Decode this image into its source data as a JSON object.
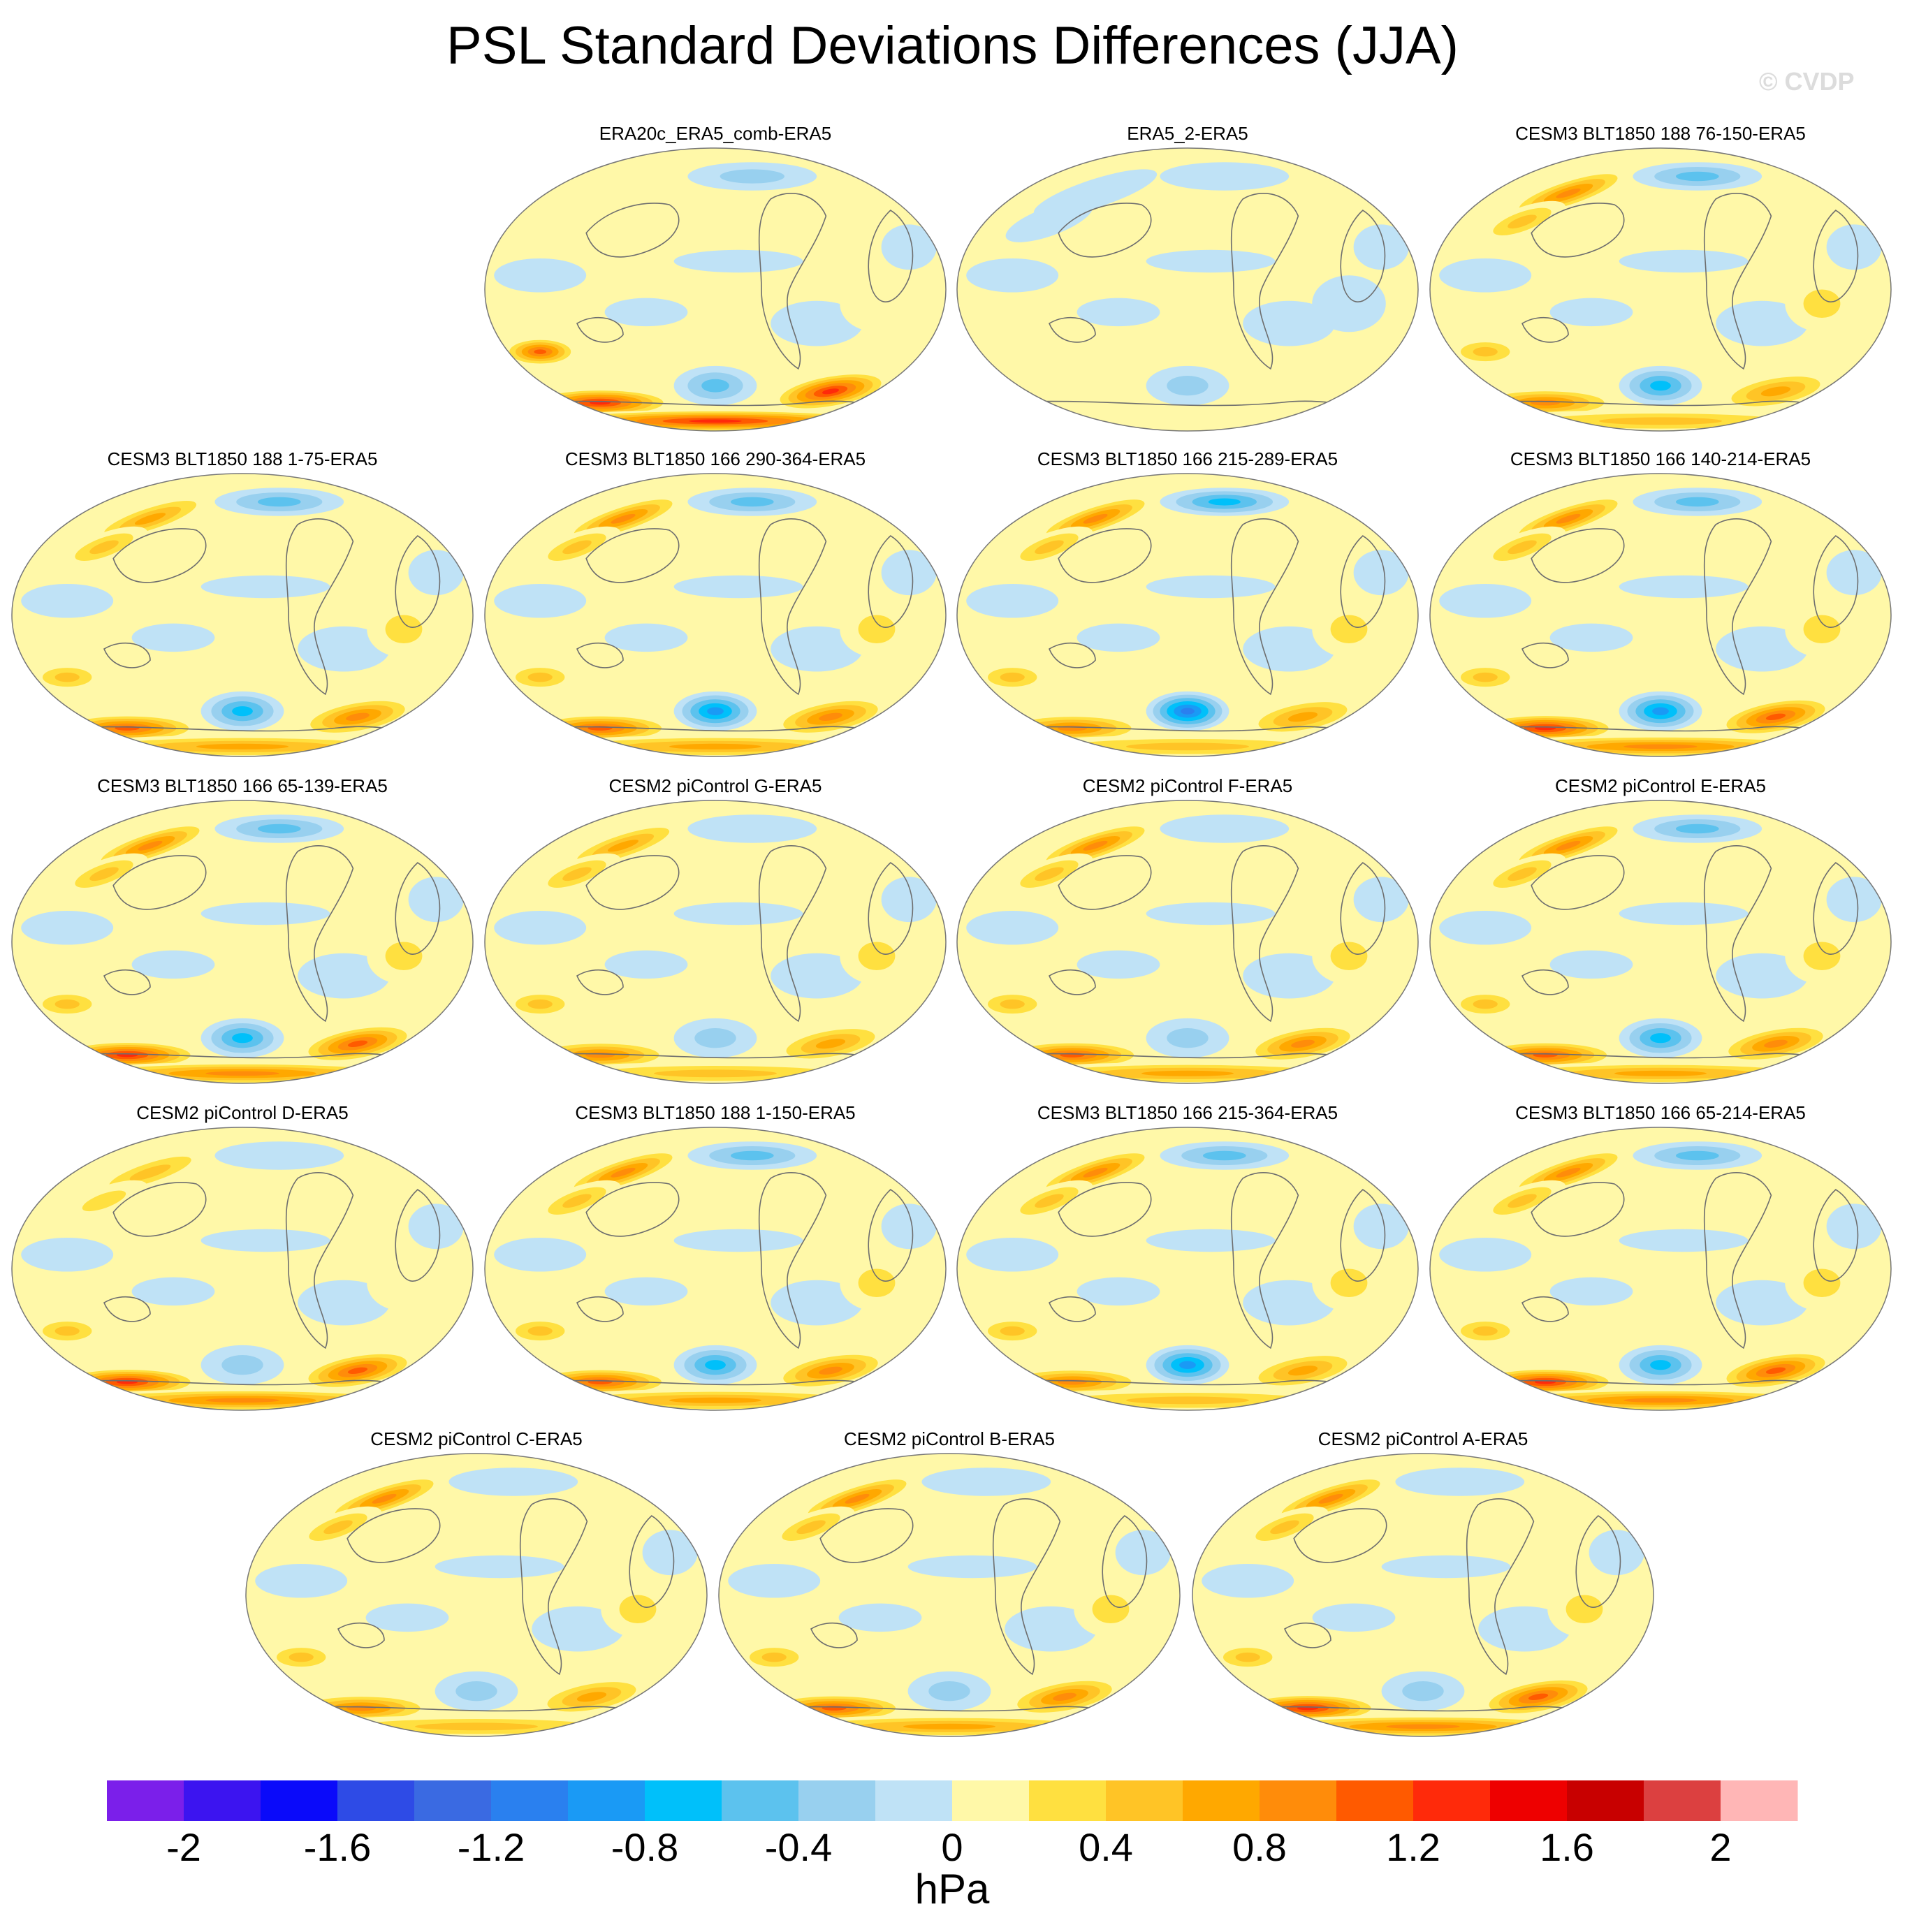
{
  "title": "PSL Standard Deviations Differences (JJA)",
  "watermark": "© CVDP",
  "chart_data": {
    "type": "heatmap",
    "title": "PSL Standard Deviations Differences (JJA)",
    "projection": "Robinson (Pacific-centered) global maps",
    "units": "hPa",
    "panels": [
      {
        "title": "ERA20c_ERA5_comb-ERA5",
        "southern_max": 2.2,
        "nh_mid": 0.3,
        "n_atlantic": -0.4
      },
      {
        "title": "ERA5_2-ERA5",
        "southern_max": 0.3,
        "nh_mid": -0.2,
        "n_atlantic": -0.3
      },
      {
        "title": "CESM3 BLT1850 188 76-150-ERA5",
        "southern_max": 1.0,
        "nh_mid": 0.9,
        "n_atlantic": -0.6
      },
      {
        "title": "CESM3 BLT1850 188 1-75-ERA5",
        "southern_max": 1.2,
        "nh_mid": 0.8,
        "n_atlantic": -0.6
      },
      {
        "title": "CESM3 BLT1850 166 290-364-ERA5",
        "southern_max": 1.1,
        "nh_mid": 0.9,
        "n_atlantic": -0.7
      },
      {
        "title": "CESM3 BLT1850 166 215-289-ERA5",
        "southern_max": 1.0,
        "nh_mid": 0.9,
        "n_atlantic": -0.8
      },
      {
        "title": "CESM3 BLT1850 166 140-214-ERA5",
        "southern_max": 1.3,
        "nh_mid": 1.0,
        "n_atlantic": -0.7
      },
      {
        "title": "CESM3 BLT1850 166 65-139-ERA5",
        "southern_max": 1.3,
        "nh_mid": 0.9,
        "n_atlantic": -0.6
      },
      {
        "title": "CESM2 piControl G-ERA5",
        "southern_max": 1.0,
        "nh_mid": 0.8,
        "n_atlantic": -0.2
      },
      {
        "title": "CESM2 piControl F-ERA5",
        "southern_max": 1.2,
        "nh_mid": 1.0,
        "n_atlantic": -0.3
      },
      {
        "title": "CESM2 piControl E-ERA5",
        "southern_max": 1.2,
        "nh_mid": 0.9,
        "n_atlantic": -0.5
      },
      {
        "title": "CESM2 piControl D-ERA5",
        "southern_max": 1.3,
        "nh_mid": 0.7,
        "n_atlantic": -0.2
      },
      {
        "title": "CESM3 BLT1850 188 1-150-ERA5",
        "southern_max": 1.1,
        "nh_mid": 0.9,
        "n_atlantic": -0.6
      },
      {
        "title": "CESM3 BLT1850 166 215-364-ERA5",
        "southern_max": 1.0,
        "nh_mid": 0.9,
        "n_atlantic": -0.7
      },
      {
        "title": "CESM3 BLT1850 166 65-214-ERA5",
        "southern_max": 1.3,
        "nh_mid": 0.9,
        "n_atlantic": -0.6
      },
      {
        "title": "CESM2 piControl C-ERA5",
        "southern_max": 1.0,
        "nh_mid": 1.0,
        "n_atlantic": -0.3
      },
      {
        "title": "CESM2 piControl B-ERA5",
        "southern_max": 1.1,
        "nh_mid": 0.9,
        "n_atlantic": -0.2
      },
      {
        "title": "CESM2 piControl A-ERA5",
        "southern_max": 1.4,
        "nh_mid": 1.0,
        "n_atlantic": -0.2
      }
    ],
    "colorbar": {
      "label": "hPa",
      "levels": [
        -2.2,
        -2.0,
        -1.8,
        -1.6,
        -1.4,
        -1.2,
        -1.0,
        -0.8,
        -0.6,
        -0.4,
        -0.2,
        0,
        0.2,
        0.4,
        0.6,
        0.8,
        1.0,
        1.2,
        1.4,
        1.6,
        1.8,
        2.0,
        2.2
      ],
      "colors": [
        "#7b1fea",
        "#3c14f0",
        "#0a0afa",
        "#2e4be6",
        "#3a6ae2",
        "#2a80ef",
        "#1a9af5",
        "#00c0fa",
        "#5cc2ee",
        "#98d0ef",
        "#bfe2f6",
        "#fff8a8",
        "#ffe040",
        "#ffc426",
        "#ffa800",
        "#ff8c0a",
        "#ff5a00",
        "#ff2a0a",
        "#ee0000",
        "#c80000",
        "#dc4040",
        "#ffb6b6"
      ],
      "tick_labels": [
        "-2",
        "-1.6",
        "-1.2",
        "-0.8",
        "-0.4",
        "0",
        "0.4",
        "0.8",
        "1.2",
        "1.6",
        "2"
      ],
      "tick_values": [
        -2.0,
        -1.6,
        -1.2,
        -0.8,
        -0.4,
        0,
        0.4,
        0.8,
        1.2,
        1.6,
        2.0
      ]
    }
  }
}
